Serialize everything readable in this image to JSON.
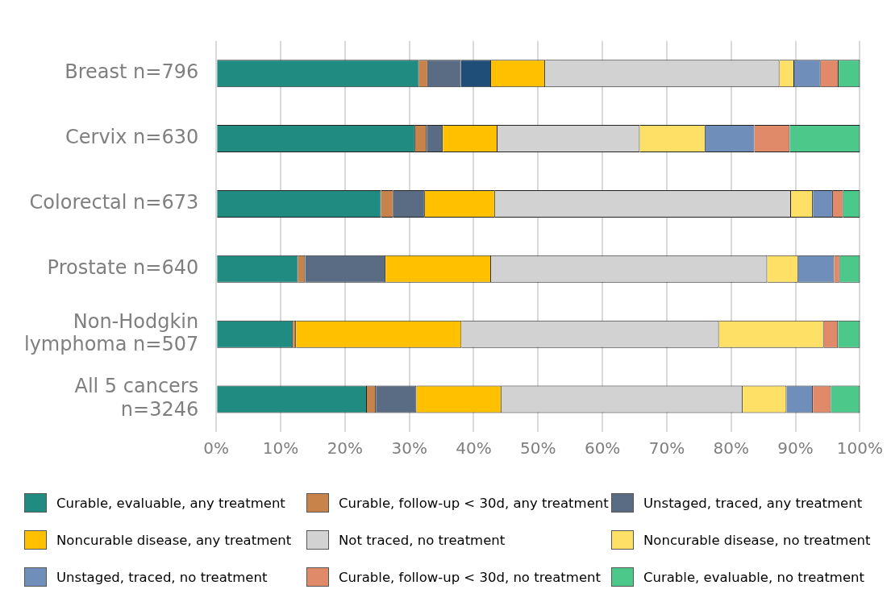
{
  "chart_data": {
    "type": "bar",
    "orientation": "horizontal",
    "stacked": true,
    "grid": "x",
    "legend": "bottom",
    "categories": [
      "Breast n=796",
      "Cervix n=630",
      "Colorectal n=673",
      "Prostate n=640",
      "Non-Hodgkin lymphoma n=507",
      "All 5 cancers n=3246"
    ],
    "xlim": [
      0,
      100
    ],
    "xticks": [
      {
        "value": 0,
        "label": "0%"
      },
      {
        "value": 10,
        "label": "10%"
      },
      {
        "value": 20,
        "label": "20%"
      },
      {
        "value": 30,
        "label": "30%"
      },
      {
        "value": 40,
        "label": "40%"
      },
      {
        "value": 50,
        "label": "50%"
      },
      {
        "value": 60,
        "label": "60%"
      },
      {
        "value": 70,
        "label": "70%"
      },
      {
        "value": 80,
        "label": "80%"
      },
      {
        "value": 90,
        "label": "90%"
      },
      {
        "value": 100,
        "label": "100%"
      }
    ],
    "series": [
      {
        "name": "Curable, evaluable, any treatment",
        "color": "#208b80",
        "values": [
          31.5,
          30.9,
          25.6,
          12.7,
          11.9,
          23.4
        ]
      },
      {
        "name": "Curable, follow-up < 30d, any treatment",
        "color": "#c8834a",
        "values": [
          1.4,
          1.8,
          1.9,
          1.1,
          0.5,
          1.4
        ]
      },
      {
        "name": "Unstaged, traced, any treatment",
        "color": "#5a6b84",
        "values": [
          5.1,
          2.5,
          4.9,
          12.5,
          0,
          6.3
        ]
      },
      {
        "color": "#1f4e79",
        "values": [
          4.7,
          0,
          0,
          0,
          0,
          0
        ]
      },
      {
        "name": "Noncurable disease, any treatment",
        "color": "#ffc000",
        "values": [
          8.4,
          8.5,
          10.9,
          16.4,
          25.7,
          13.2
        ]
      },
      {
        "name": "Not traced, no treatment",
        "color": "#d2d2d2",
        "values": [
          36.4,
          22.1,
          46.0,
          42.9,
          40.0,
          37.5
        ]
      },
      {
        "name": "Noncurable disease, no treatment",
        "color": "#ffe066",
        "values": [
          2.3,
          10.2,
          3.4,
          4.8,
          16.3,
          6.8
        ]
      },
      {
        "name": "Unstaged, traced, no treatment",
        "color": "#6f8fba",
        "values": [
          4.1,
          7.6,
          3.1,
          5.6,
          0,
          4.1
        ]
      },
      {
        "name": "Curable, follow-up < 30d, no treatment",
        "color": "#e08a6a",
        "values": [
          2.8,
          5.5,
          1.6,
          0.9,
          2.2,
          2.8
        ]
      },
      {
        "name": "Curable, evaluable, no treatment",
        "color": "#4cc98a",
        "values": [
          3.3,
          10.9,
          2.6,
          3.1,
          3.4,
          4.5
        ]
      }
    ]
  }
}
